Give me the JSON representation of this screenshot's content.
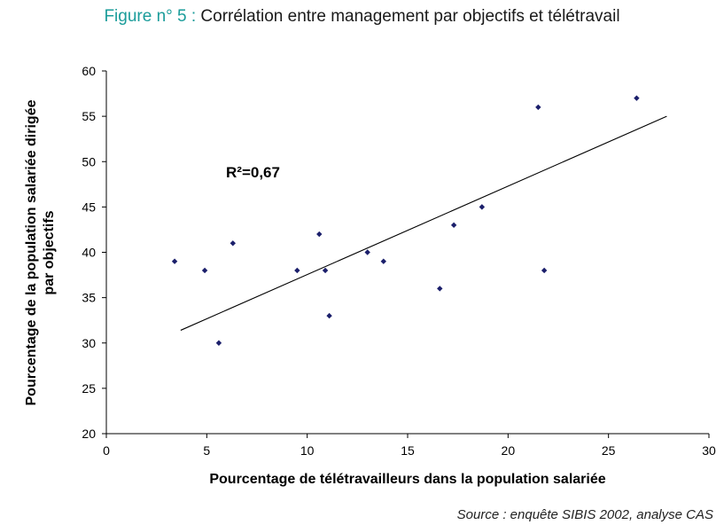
{
  "title_prefix": "Figure n° 5 :",
  "title_text": "Corrélation entre management par objectifs et télétravail",
  "source": "Source : enquête SIBIS 2002, analyse CAS",
  "colors": {
    "title_prefix": "#1a9c9a",
    "point": "#1b1f6b",
    "trendline": "#000000",
    "axis": "#000000"
  },
  "chart_data": {
    "type": "scatter",
    "xlabel": "Pourcentage de télétravailleurs dans la population salariée",
    "ylabel_lines": [
      "Pourcentage de la population salariée dirigée",
      "par objectifs"
    ],
    "xlim": [
      0,
      30
    ],
    "ylim": [
      20,
      60
    ],
    "xticks": [
      0,
      5,
      10,
      15,
      20,
      25,
      30
    ],
    "yticks": [
      20,
      25,
      30,
      35,
      40,
      45,
      50,
      55,
      60
    ],
    "grid": false,
    "points": [
      {
        "x": 3.4,
        "y": 39
      },
      {
        "x": 4.9,
        "y": 38
      },
      {
        "x": 5.6,
        "y": 30
      },
      {
        "x": 6.3,
        "y": 41
      },
      {
        "x": 9.5,
        "y": 38
      },
      {
        "x": 10.6,
        "y": 42
      },
      {
        "x": 10.9,
        "y": 38
      },
      {
        "x": 11.1,
        "y": 33
      },
      {
        "x": 13.0,
        "y": 40
      },
      {
        "x": 13.8,
        "y": 39
      },
      {
        "x": 16.6,
        "y": 36
      },
      {
        "x": 17.3,
        "y": 43
      },
      {
        "x": 18.7,
        "y": 45
      },
      {
        "x": 21.5,
        "y": 56
      },
      {
        "x": 21.8,
        "y": 38
      },
      {
        "x": 26.4,
        "y": 57
      }
    ],
    "trendline": {
      "x_start": 3.7,
      "y_start": 31.4,
      "x_end": 27.9,
      "y_end": 55.0
    },
    "annotation": "R²=0,67"
  }
}
